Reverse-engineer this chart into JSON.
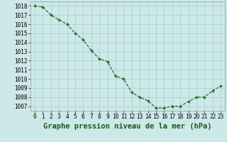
{
  "x": [
    0,
    1,
    2,
    3,
    4,
    5,
    6,
    7,
    8,
    9,
    10,
    11,
    12,
    13,
    14,
    15,
    16,
    17,
    18,
    19,
    20,
    21,
    22,
    23
  ],
  "y": [
    1018.0,
    1017.9,
    1017.0,
    1016.5,
    1016.0,
    1015.0,
    1014.3,
    1013.1,
    1012.2,
    1011.9,
    1010.3,
    1010.0,
    1008.5,
    1008.0,
    1007.6,
    1006.8,
    1006.8,
    1007.0,
    1007.0,
    1007.5,
    1008.0,
    1008.0,
    1008.7,
    1009.2
  ],
  "ylim": [
    1006.5,
    1018.5
  ],
  "yticks": [
    1007,
    1008,
    1009,
    1010,
    1011,
    1012,
    1013,
    1014,
    1015,
    1016,
    1017,
    1018
  ],
  "xlim": [
    -0.5,
    23.5
  ],
  "xticks": [
    0,
    1,
    2,
    3,
    4,
    5,
    6,
    7,
    8,
    9,
    10,
    11,
    12,
    13,
    14,
    15,
    16,
    17,
    18,
    19,
    20,
    21,
    22,
    23
  ],
  "xlabel": "Graphe pression niveau de la mer (hPa)",
  "line_color": "#1a5c1a",
  "marker": "+",
  "bg_color": "#cce8e8",
  "grid_color": "#aacccc",
  "tick_fontsize": 5.5,
  "label_fontsize": 7.5
}
